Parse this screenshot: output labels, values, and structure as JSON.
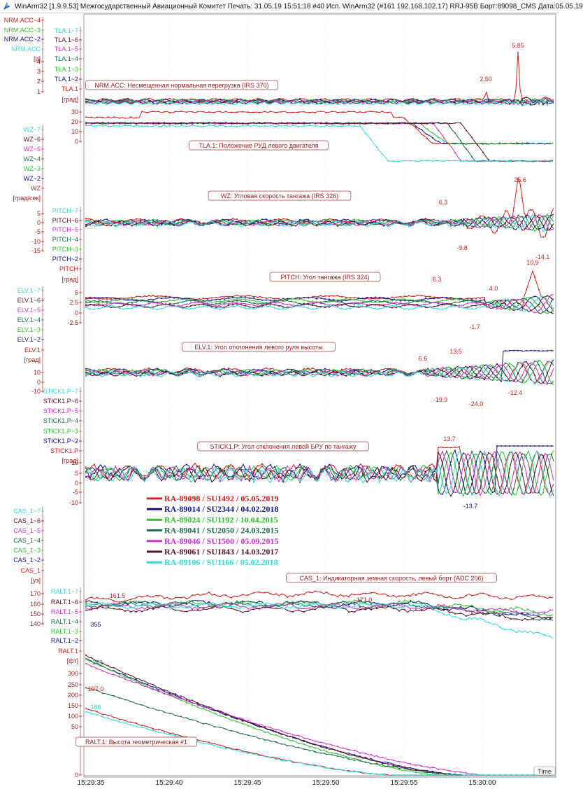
{
  "window": {
    "title": "WinArm32 [1.9.9.53] Межгосударственный Авиационный Комитет  Печать: 31.05.19 15:51:18  #40   Исп. WinArm32 (#161 192.168.102.17) RRJ-95B Борт:89098_CMS Дата:05.05.19",
    "icon": "winarm-app-icon"
  },
  "colors": {
    "red": "#d42020",
    "navy": "#14148c",
    "green": "#2ec82e",
    "darkgreen": "#1c6e4a",
    "magenta": "#d430d4",
    "darkred": "#5a1028",
    "cyan": "#30dede",
    "axis_text": "#9b1b1b"
  },
  "chart_data": {
    "type": "line",
    "x_axis": {
      "label": "Time",
      "ticks": [
        "15:29:35",
        "15:29:40",
        "15:29:45",
        "15:29:50",
        "15:29:55",
        "15:30:00"
      ]
    },
    "legend": [
      {
        "text": "RA-89098 / SU1492 / 05.05.2019",
        "color": "#d42020"
      },
      {
        "text": "RA-89014 / SU2344 / 04.02.2018",
        "color": "#14148c"
      },
      {
        "text": "RA-89024 / SU1192 / 10.04.2015",
        "color": "#2ec82e"
      },
      {
        "text": "RA-89041 / SU2050 / 24.03.2015",
        "color": "#1c6e4a"
      },
      {
        "text": "RA-89046 / SU1500 / 05.09.2015",
        "color": "#d430d4"
      },
      {
        "text": "RA-89061 / SU1843 / 14.03.2017",
        "color": "#5a1028"
      },
      {
        "text": "RA-89106 / SU1166 / 05.02.2018",
        "color": "#30dede"
      }
    ],
    "panels": [
      {
        "param": "NRM.ACC",
        "title": "NRM.ACC: Несмещенная нормальная перегрузка (IRS 370)",
        "unit": "[g]",
        "channel_labels": [
          "NRM.ACC~4",
          "NRM.ACC~3",
          "NRM.ACC~2",
          "NRM.ACC"
        ],
        "ticks": [
          "4",
          "3",
          "2",
          "1"
        ],
        "annotations": [
          "2.50",
          "5.85"
        ]
      },
      {
        "param": "TLA.1",
        "title": "TLA.1: Положение РУД левого двигателя",
        "unit": "[град]",
        "channel_labels": [
          "TLA.1~7",
          "TLA.1~6",
          "TLA.1~5",
          "TLA.1~4",
          "TLA.1~3",
          "TLA.1~2",
          "TLA.1"
        ],
        "ticks": [
          "30",
          "20",
          "10",
          "0"
        ],
        "annotations": []
      },
      {
        "param": "WZ",
        "title": "WZ: Угловая скорость тангажа (IRS 326)",
        "unit": "[град/сек]",
        "channel_labels": [
          "WZ~7",
          "WZ~6",
          "WZ~5",
          "WZ~4",
          "WZ~3",
          "WZ~2",
          "WZ"
        ],
        "ticks": [
          "5",
          "0",
          "-5",
          "-10",
          "-15"
        ],
        "annotations": [
          "6.3",
          "25.6",
          "-9.8",
          "-14.1"
        ]
      },
      {
        "param": "PITCH",
        "title": "PITCH: Угол тангажа (IRS 324)",
        "unit": "[град]",
        "channel_labels": [
          "PITCH~7",
          "PITCH~6",
          "PITCH~5",
          "PITCH~4",
          "PITCH~3",
          "PITCH~2",
          "PITCH"
        ],
        "ticks": [
          "5",
          "2.5",
          "0",
          "-2.5"
        ],
        "annotations": [
          "6.3",
          "10.9",
          "4.0",
          "-1.7"
        ]
      },
      {
        "param": "ELV.1",
        "title": "ELV.1: Угол отклонения левого руля высоты",
        "unit": "[град]",
        "channel_labels": [
          "ELV.1~7",
          "ELV.1~6",
          "ELV.1~5",
          "ELV.1~4",
          "ELV.1~3",
          "ELV.1~2",
          "ELV.1"
        ],
        "ticks": [
          "10",
          "0",
          "-10"
        ],
        "annotations": [
          "6.6",
          "13.5",
          "-19.9",
          "-24.0",
          "-12.4"
        ]
      },
      {
        "param": "STICK1.P",
        "title": "STICK1.P: Угол отклонения левой БРУ по тангажу",
        "unit": "[град]",
        "channel_labels": [
          "STICK1.P~7",
          "STICK1.P~6",
          "STICK1.P~5",
          "STICK1.P~4",
          "STICK1.P~3",
          "STICK1.P~2",
          "STICK1.P"
        ],
        "ticks": [
          "10",
          "5",
          "0",
          "-5",
          "-10"
        ],
        "annotations": [
          "13.7",
          "-13.7"
        ]
      },
      {
        "param": "CAS_1",
        "title": "CAS_1: Индикаторная земная скорость, левый борт (ADC 206)",
        "unit": "[уз]",
        "channel_labels": [
          "CAS_1~7",
          "CAS_1~6",
          "CAS_1~5",
          "CAS_1~4",
          "CAS_1~3",
          "CAS_1~2",
          "CAS_1"
        ],
        "ticks": [
          "170",
          "160",
          "150",
          "140"
        ],
        "annotations": [
          "161.5",
          "171.0"
        ]
      },
      {
        "param": "RALT.1",
        "title": "RALT.1: Высота геометрическая #1",
        "unit": "[фт]",
        "channel_labels": [
          "RALT.1~7",
          "RALT.1~6",
          "RALT.1~5",
          "RALT.1~4",
          "RALT.1~3",
          "RALT.1~2",
          "RALT.1"
        ],
        "ticks": [
          "300",
          "250",
          "200",
          "150",
          "100",
          "50",
          "0"
        ],
        "annotations": [
          "355",
          "261",
          "197.0",
          "188"
        ],
        "series_start_values": [
          {
            "color": "#d42020",
            "value": 197
          },
          {
            "color": "#14148c",
            "value": 345
          },
          {
            "color": "#2ec82e",
            "value": 345
          },
          {
            "color": "#1c6e4a",
            "value": 261
          },
          {
            "color": "#d430d4",
            "value": 330
          },
          {
            "color": "#5a1028",
            "value": 355
          },
          {
            "color": "#30dede",
            "value": 188
          }
        ]
      }
    ]
  }
}
